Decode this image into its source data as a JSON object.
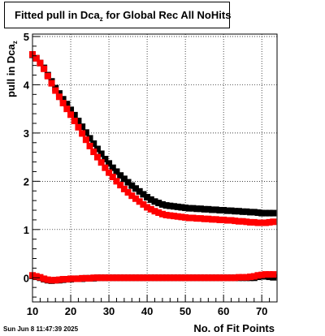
{
  "title": {
    "text": "Fitted pull in Dca",
    "sub": "z",
    "suffix": " for Global Rec All NoHits"
  },
  "ylabel": {
    "text": "pull in Dca",
    "sub": "z"
  },
  "xlabel": "No. of Fit Points",
  "timestamp": "Sun Jun  8 11:47:39 2025",
  "colors": {
    "series_black": "#000000",
    "series_red": "#ff0000",
    "grid": "#000000"
  },
  "chart_data": {
    "type": "scatter",
    "title": "Fitted pull in Dca_z for Global Rec All NoHits",
    "xlabel": "No. of Fit Points",
    "ylabel": "pull in Dca_z",
    "xlim": [
      10,
      74
    ],
    "ylim": [
      -0.5,
      5.05
    ],
    "xticks": [
      10,
      20,
      30,
      40,
      50,
      60,
      70
    ],
    "yticks": [
      0,
      1,
      2,
      3,
      4,
      5
    ],
    "grid": true,
    "legend": "none",
    "x": [
      10,
      11,
      12,
      13,
      14,
      15,
      16,
      17,
      18,
      19,
      20,
      21,
      22,
      23,
      24,
      25,
      26,
      27,
      28,
      29,
      30,
      31,
      32,
      33,
      34,
      35,
      36,
      37,
      38,
      39,
      40,
      41,
      42,
      43,
      44,
      45,
      46,
      47,
      48,
      49,
      50,
      51,
      52,
      53,
      54,
      55,
      56,
      57,
      58,
      59,
      60,
      61,
      62,
      63,
      64,
      65,
      66,
      67,
      68,
      69,
      70,
      71,
      72,
      73
    ],
    "series": [
      {
        "color": "#000000",
        "values": [
          4.62,
          4.55,
          4.45,
          4.35,
          4.2,
          4.07,
          3.93,
          3.82,
          3.7,
          3.6,
          3.48,
          3.37,
          3.25,
          3.13,
          3.01,
          2.89,
          2.78,
          2.67,
          2.57,
          2.46,
          2.37,
          2.28,
          2.2,
          2.12,
          2.05,
          1.98,
          1.91,
          1.85,
          1.79,
          1.73,
          1.67,
          1.62,
          1.58,
          1.55,
          1.52,
          1.5,
          1.49,
          1.48,
          1.47,
          1.46,
          1.45,
          1.44,
          1.44,
          1.43,
          1.43,
          1.42,
          1.42,
          1.41,
          1.41,
          1.4,
          1.4,
          1.39,
          1.39,
          1.38,
          1.38,
          1.37,
          1.37,
          1.36,
          1.36,
          1.35,
          1.34,
          1.34,
          1.34,
          1.34
        ]
      },
      {
        "color": "#ff0000",
        "values": [
          4.63,
          4.55,
          4.45,
          4.33,
          4.18,
          4.03,
          3.88,
          3.75,
          3.62,
          3.5,
          3.38,
          3.25,
          3.12,
          2.99,
          2.86,
          2.73,
          2.61,
          2.5,
          2.39,
          2.28,
          2.18,
          2.09,
          2.0,
          1.92,
          1.84,
          1.77,
          1.7,
          1.64,
          1.58,
          1.52,
          1.46,
          1.42,
          1.38,
          1.35,
          1.32,
          1.3,
          1.29,
          1.28,
          1.27,
          1.26,
          1.25,
          1.24,
          1.24,
          1.23,
          1.23,
          1.22,
          1.22,
          1.21,
          1.21,
          1.2,
          1.2,
          1.19,
          1.19,
          1.18,
          1.17,
          1.17,
          1.16,
          1.15,
          1.15,
          1.14,
          1.14,
          1.14,
          1.15,
          1.16
        ]
      },
      {
        "color": "#000000",
        "values": [
          0.04,
          0.02,
          0.0,
          -0.03,
          -0.05,
          -0.06,
          -0.05,
          -0.05,
          -0.04,
          -0.03,
          -0.03,
          -0.02,
          -0.02,
          -0.02,
          -0.01,
          -0.01,
          -0.01,
          0.0,
          0.0,
          0.0,
          0.0,
          0.0,
          0.0,
          0.0,
          0.0,
          0.0,
          0.0,
          0.0,
          0.0,
          0.0,
          0.0,
          0.0,
          0.0,
          0.0,
          0.0,
          0.0,
          0.0,
          0.0,
          0.0,
          0.0,
          0.0,
          0.0,
          0.0,
          0.0,
          0.0,
          0.0,
          0.0,
          0.0,
          0.0,
          0.0,
          0.0,
          0.0,
          0.0,
          0.0,
          0.0,
          0.0,
          0.0,
          0.0,
          0.0,
          0.02,
          0.03,
          0.03,
          0.02,
          0.01
        ]
      },
      {
        "color": "#ff0000",
        "values": [
          0.05,
          0.03,
          0.01,
          -0.02,
          -0.04,
          -0.05,
          -0.05,
          -0.04,
          -0.03,
          -0.03,
          -0.02,
          -0.02,
          -0.02,
          -0.01,
          -0.01,
          -0.01,
          0.0,
          0.0,
          0.0,
          0.0,
          0.0,
          0.0,
          0.0,
          0.0,
          0.0,
          0.0,
          0.0,
          0.0,
          0.0,
          0.0,
          0.0,
          0.0,
          0.0,
          0.0,
          0.0,
          0.0,
          0.0,
          0.0,
          0.0,
          0.0,
          0.0,
          0.0,
          0.0,
          0.0,
          0.0,
          0.0,
          0.0,
          0.0,
          0.0,
          0.0,
          0.0,
          0.0,
          0.0,
          0.0,
          0.01,
          0.01,
          0.01,
          0.02,
          0.03,
          0.05,
          0.06,
          0.07,
          0.07,
          0.07
        ]
      }
    ]
  }
}
